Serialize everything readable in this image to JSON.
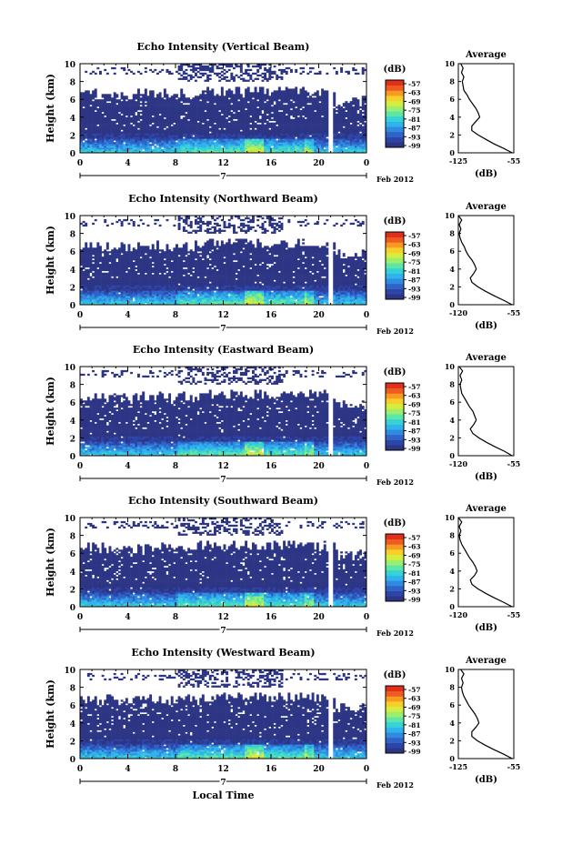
{
  "figure": {
    "bottom_xlabel": "Local Time",
    "date_label": "Feb 2012",
    "day_label": "7"
  },
  "colors": {
    "background_echo": "#2d3585",
    "colorbar": [
      "#2d3585",
      "#2e45a8",
      "#2f63c8",
      "#2f8ae0",
      "#2fb3ec",
      "#37d2d6",
      "#5ee6a6",
      "#9bef6c",
      "#d6ec3f",
      "#f7cf2a",
      "#f79a22",
      "#ee5a1f",
      "#e0301b"
    ]
  },
  "chart_data": [
    {
      "type": "heatmap",
      "title": "Echo Intensity (Vertical Beam)",
      "ylabel": "Height (km)",
      "colorbar_label": "(dB)",
      "colorbar_ticks": [
        "-57",
        "-63",
        "-69",
        "-75",
        "-81",
        "-87",
        "-93",
        "-99"
      ],
      "x_ticks": [
        "0",
        "4",
        "8",
        "12",
        "16",
        "20",
        "0"
      ],
      "y_ticks": [
        "0",
        "2",
        "4",
        "6",
        "8",
        "10"
      ],
      "xlim": [
        0,
        24
      ],
      "ylim": [
        0,
        10
      ],
      "profile": {
        "title": "Average",
        "xlabel": "(dB)",
        "x_ticks": [
          "-125",
          "-55"
        ],
        "xlim": [
          -125,
          -55
        ],
        "heights": [
          0,
          0.5,
          1,
          1.5,
          2,
          2.5,
          3,
          3.5,
          4,
          4.5,
          5,
          5.5,
          6,
          6.5,
          7,
          7.5,
          8,
          8.5,
          9,
          9.5,
          10
        ],
        "values": [
          -57,
          -68,
          -80,
          -90,
          -100,
          -108,
          -108,
          -103,
          -98,
          -100,
          -103,
          -107,
          -111,
          -114,
          -118,
          -119,
          -120,
          -118,
          -121,
          -119,
          -122
        ]
      }
    },
    {
      "type": "heatmap",
      "title": "Echo Intensity (Northward Beam)",
      "ylabel": "Height (km)",
      "colorbar_label": "(dB)",
      "colorbar_ticks": [
        "-57",
        "-63",
        "-69",
        "-75",
        "-81",
        "-87",
        "-93",
        "-99"
      ],
      "x_ticks": [
        "0",
        "4",
        "8",
        "12",
        "16",
        "20",
        "0"
      ],
      "y_ticks": [
        "0",
        "2",
        "4",
        "6",
        "8",
        "10"
      ],
      "xlim": [
        0,
        24
      ],
      "ylim": [
        0,
        10
      ],
      "profile": {
        "title": "Average",
        "xlabel": "(dB)",
        "x_ticks": [
          "-120",
          "-55"
        ],
        "xlim": [
          -120,
          -55
        ],
        "heights": [
          0,
          0.5,
          1,
          1.5,
          2,
          2.5,
          3,
          3.5,
          4,
          4.5,
          5,
          5.5,
          6,
          6.5,
          7,
          7.5,
          8,
          8.5,
          9,
          9.5,
          10
        ],
        "values": [
          -57,
          -67,
          -78,
          -88,
          -97,
          -104,
          -106,
          -102,
          -99,
          -101,
          -104,
          -108,
          -111,
          -113,
          -116,
          -118,
          -119,
          -117,
          -119,
          -116,
          -120
        ]
      }
    },
    {
      "type": "heatmap",
      "title": "Echo Intensity (Eastward Beam)",
      "ylabel": "Height (km)",
      "colorbar_label": "(dB)",
      "colorbar_ticks": [
        "-57",
        "-63",
        "-69",
        "-75",
        "-81",
        "-87",
        "-93",
        "-99"
      ],
      "x_ticks": [
        "0",
        "4",
        "8",
        "12",
        "16",
        "20",
        "0"
      ],
      "y_ticks": [
        "0",
        "2",
        "4",
        "6",
        "8",
        "10"
      ],
      "xlim": [
        0,
        24
      ],
      "ylim": [
        0,
        10
      ],
      "profile": {
        "title": "Average",
        "xlabel": "(dB)",
        "x_ticks": [
          "-120",
          "-55"
        ],
        "xlim": [
          -120,
          -55
        ],
        "heights": [
          0,
          0.5,
          1,
          1.5,
          2,
          2.5,
          3,
          3.5,
          4,
          4.5,
          5,
          5.5,
          6,
          6.5,
          7,
          7.5,
          8,
          8.5,
          9,
          9.5,
          10
        ],
        "values": [
          -57,
          -66,
          -77,
          -87,
          -96,
          -103,
          -106,
          -102,
          -99,
          -101,
          -103,
          -107,
          -110,
          -113,
          -116,
          -117,
          -118,
          -116,
          -118,
          -115,
          -119
        ]
      }
    },
    {
      "type": "heatmap",
      "title": "Echo Intensity (Southward Beam)",
      "ylabel": "Height (km)",
      "colorbar_label": "(dB)",
      "colorbar_ticks": [
        "-57",
        "-63",
        "-69",
        "-75",
        "-81",
        "-87",
        "-93",
        "-99"
      ],
      "x_ticks": [
        "0",
        "4",
        "8",
        "12",
        "16",
        "20",
        "0"
      ],
      "y_ticks": [
        "0",
        "2",
        "4",
        "6",
        "8",
        "10"
      ],
      "xlim": [
        0,
        24
      ],
      "ylim": [
        0,
        10
      ],
      "profile": {
        "title": "Average",
        "xlabel": "(dB)",
        "x_ticks": [
          "-120",
          "-55"
        ],
        "xlim": [
          -120,
          -55
        ],
        "heights": [
          0,
          0.5,
          1,
          1.5,
          2,
          2.5,
          3,
          3.5,
          4,
          4.5,
          5,
          5.5,
          6,
          6.5,
          7,
          7.5,
          8,
          8.5,
          9,
          9.5,
          10
        ],
        "values": [
          -57,
          -67,
          -78,
          -88,
          -97,
          -104,
          -106,
          -101,
          -98,
          -100,
          -103,
          -107,
          -110,
          -113,
          -116,
          -118,
          -119,
          -117,
          -119,
          -116,
          -120
        ]
      }
    },
    {
      "type": "heatmap",
      "title": "Echo Intensity (Westward Beam)",
      "ylabel": "Height (km)",
      "colorbar_label": "(dB)",
      "colorbar_ticks": [
        "-57",
        "-63",
        "-69",
        "-75",
        "-81",
        "-87",
        "-93",
        "-99"
      ],
      "x_ticks": [
        "0",
        "4",
        "8",
        "12",
        "16",
        "20",
        "0"
      ],
      "y_ticks": [
        "0",
        "2",
        "4",
        "6",
        "8",
        "10"
      ],
      "xlim": [
        0,
        24
      ],
      "ylim": [
        0,
        10
      ],
      "profile": {
        "title": "Average",
        "xlabel": "(dB)",
        "x_ticks": [
          "-125",
          "-55"
        ],
        "xlim": [
          -125,
          -55
        ],
        "heights": [
          0,
          0.5,
          1,
          1.5,
          2,
          2.5,
          3,
          3.5,
          4,
          4.5,
          5,
          5.5,
          6,
          6.5,
          7,
          7.5,
          8,
          8.5,
          9,
          9.5,
          10
        ],
        "values": [
          -57,
          -68,
          -80,
          -91,
          -101,
          -108,
          -108,
          -103,
          -99,
          -101,
          -104,
          -108,
          -112,
          -115,
          -118,
          -120,
          -121,
          -119,
          -121,
          -118,
          -122
        ]
      }
    }
  ]
}
